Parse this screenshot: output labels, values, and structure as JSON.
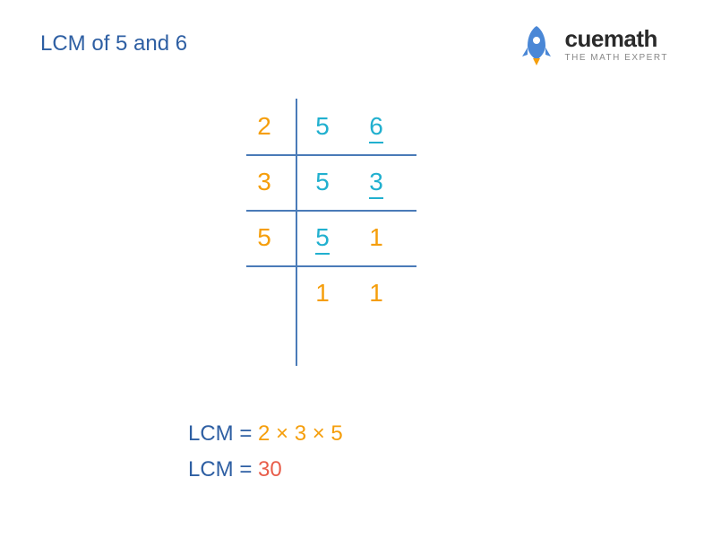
{
  "title": {
    "text": "LCM of 5 and 6",
    "color": "#2e5fa3",
    "fontsize": 24
  },
  "logo": {
    "brand": "cuemath",
    "brand_color": "#2a2a2a",
    "tagline": "THE MATH EXPERT",
    "tagline_color": "#888888",
    "rocket_body": "#4a87d6",
    "rocket_flame": "#f59e0b"
  },
  "colors": {
    "blue": "#2e5fa3",
    "orange": "#f59e0b",
    "cyan": "#21b0cf",
    "red": "#e85d4a",
    "line": "#4a7bb8"
  },
  "table": {
    "rows": [
      {
        "divisor": {
          "value": "2",
          "color": "#f59e0b"
        },
        "cells": [
          {
            "value": "5",
            "color": "#21b0cf",
            "underline": false
          },
          {
            "value": "6",
            "color": "#21b0cf",
            "underline": true
          }
        ]
      },
      {
        "divisor": {
          "value": "3",
          "color": "#f59e0b"
        },
        "cells": [
          {
            "value": "5",
            "color": "#21b0cf",
            "underline": false
          },
          {
            "value": "3",
            "color": "#21b0cf",
            "underline": true
          }
        ]
      },
      {
        "divisor": {
          "value": "5",
          "color": "#f59e0b"
        },
        "cells": [
          {
            "value": "5",
            "color": "#21b0cf",
            "underline": true
          },
          {
            "value": "1",
            "color": "#f59e0b",
            "underline": false
          }
        ]
      },
      {
        "divisor": {
          "value": "",
          "color": "#f59e0b"
        },
        "cells": [
          {
            "value": "1",
            "color": "#f59e0b",
            "underline": false
          },
          {
            "value": "1",
            "color": "#f59e0b",
            "underline": false
          }
        ]
      }
    ],
    "hline_positions": [
      172,
      234,
      296
    ],
    "vline_color": "#4a7bb8",
    "hline_color": "#4a7bb8"
  },
  "result": {
    "line1": {
      "label": "LCM = ",
      "label_color": "#2e5fa3",
      "expr": "2 × 3 × 5",
      "expr_color": "#f59e0b"
    },
    "line2": {
      "label": "LCM = ",
      "label_color": "#2e5fa3",
      "value": "30",
      "value_color": "#e85d4a"
    }
  }
}
